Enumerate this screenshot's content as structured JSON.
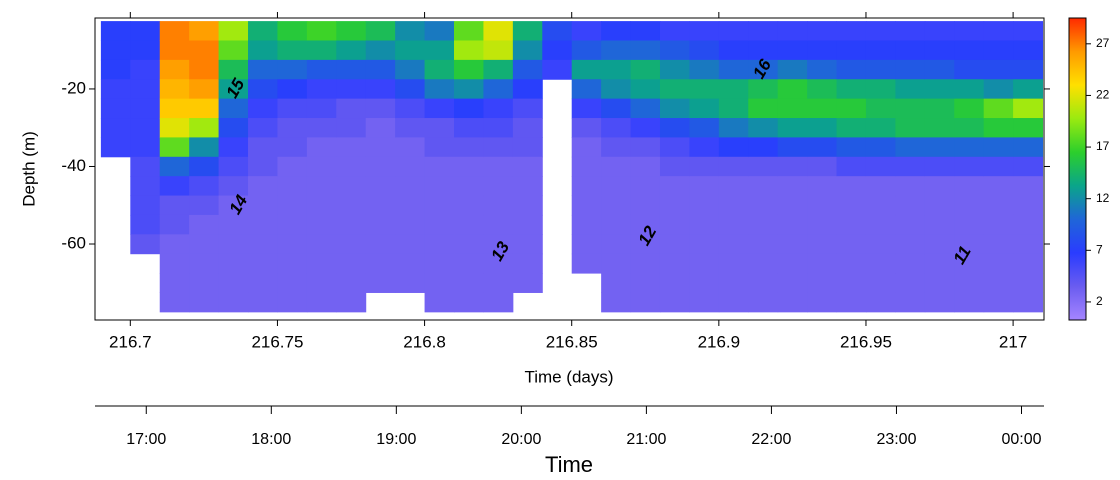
{
  "chart_data": {
    "type": "heatmap",
    "xlabel": "Time (days)",
    "ylabel": "Depth (m)",
    "xlim": [
      216.688,
      217.0105
    ],
    "xticks": [
      216.7,
      216.75,
      216.8,
      216.85,
      216.9,
      216.95,
      217
    ],
    "ylim": [
      -79.6,
      -1.7
    ],
    "yticks": [
      -60,
      -40,
      -20
    ],
    "clim": [
      0.25,
      29.5
    ],
    "cticks": [
      2,
      7,
      12,
      17,
      22,
      27
    ],
    "colormap": [
      "#a585ff",
      "#6a5cf0",
      "#2a3cff",
      "#1f66d8",
      "#0aa58a",
      "#2ccf2c",
      "#9aea10",
      "#ffe000",
      "#ff9a00",
      "#ff2a00"
    ],
    "x": [
      216.695,
      216.705,
      216.715,
      216.725,
      216.735,
      216.745,
      216.755,
      216.765,
      216.775,
      216.785,
      216.795,
      216.805,
      216.815,
      216.825,
      216.835,
      216.845,
      216.855,
      216.865,
      216.875,
      216.885,
      216.895,
      216.905,
      216.915,
      216.925,
      216.935,
      216.945,
      216.955,
      216.965,
      216.975,
      216.985,
      216.995,
      217.005
    ],
    "y": [
      -5,
      -10,
      -15,
      -20,
      -25,
      -30,
      -35,
      -40,
      -45,
      -50,
      -55,
      -60,
      -65,
      -70,
      -75
    ],
    "z": [
      [
        7,
        7,
        7,
        6,
        6,
        6,
        6,
        null,
        null,
        null,
        null,
        null,
        null,
        null,
        null
      ],
      [
        7,
        7,
        6,
        6,
        6,
        6,
        6,
        5,
        5,
        5,
        5,
        4,
        null,
        null,
        null
      ],
      [
        27,
        27,
        26,
        25,
        24,
        22,
        18,
        10,
        6,
        4,
        4,
        3,
        3,
        3,
        3
      ],
      [
        26,
        27,
        27,
        26,
        24,
        20,
        12,
        8,
        5,
        4,
        3,
        3,
        3,
        3,
        3
      ],
      [
        20,
        18,
        15,
        13,
        10,
        8,
        6,
        5,
        4,
        3,
        3,
        3,
        3,
        3,
        3
      ],
      [
        14,
        13,
        10,
        8,
        6,
        5,
        4,
        4,
        3,
        3,
        3,
        3,
        3,
        3,
        3
      ],
      [
        16,
        14,
        10,
        7,
        5,
        4,
        4,
        3,
        3,
        3,
        3,
        3,
        3,
        3,
        3
      ],
      [
        17,
        14,
        9,
        6,
        5,
        4,
        3,
        3,
        3,
        3,
        3,
        3,
        3,
        3,
        3
      ],
      [
        16,
        13,
        9,
        6,
        4,
        4,
        3,
        3,
        3,
        3,
        3,
        3,
        3,
        3,
        3
      ],
      [
        15,
        12,
        9,
        6,
        4,
        3,
        3,
        3,
        3,
        3,
        3,
        3,
        3,
        3,
        null
      ],
      [
        12,
        13,
        11,
        8,
        5,
        4,
        3,
        3,
        3,
        3,
        3,
        3,
        3,
        3,
        null
      ],
      [
        11,
        13,
        14,
        11,
        6,
        4,
        4,
        3,
        3,
        3,
        3,
        3,
        3,
        3,
        3
      ],
      [
        18,
        20,
        16,
        12,
        7,
        5,
        4,
        3,
        3,
        3,
        3,
        3,
        3,
        3,
        3
      ],
      [
        22,
        21,
        14,
        10,
        6,
        5,
        4,
        3,
        3,
        3,
        3,
        3,
        3,
        3,
        3
      ],
      [
        14,
        12,
        9,
        7,
        5,
        4,
        4,
        3,
        3,
        3,
        3,
        3,
        3,
        3,
        null
      ],
      [
        8,
        7,
        6,
        null,
        null,
        null,
        null,
        null,
        null,
        null,
        null,
        null,
        null,
        null,
        null
      ],
      [
        6,
        9,
        13,
        10,
        6,
        4,
        3,
        3,
        3,
        3,
        3,
        3,
        3,
        null,
        null
      ],
      [
        7,
        10,
        13,
        12,
        8,
        5,
        4,
        3,
        3,
        3,
        3,
        3,
        3,
        3,
        3
      ],
      [
        7,
        10,
        14,
        13,
        10,
        6,
        4,
        3,
        3,
        3,
        3,
        3,
        3,
        3,
        3
      ],
      [
        6,
        9,
        12,
        14,
        12,
        8,
        5,
        4,
        3,
        3,
        3,
        3,
        3,
        3,
        3
      ],
      [
        6,
        8,
        11,
        14,
        13,
        9,
        6,
        4,
        3,
        3,
        3,
        3,
        3,
        3,
        3
      ],
      [
        6,
        7,
        10,
        14,
        14,
        11,
        7,
        4,
        3,
        3,
        3,
        3,
        3,
        3,
        3
      ],
      [
        6,
        7,
        10,
        15,
        16,
        12,
        7,
        4,
        3,
        3,
        3,
        3,
        3,
        3,
        3
      ],
      [
        6,
        7,
        11,
        16,
        16,
        13,
        8,
        4,
        3,
        3,
        3,
        3,
        3,
        3,
        3
      ],
      [
        6,
        7,
        10,
        15,
        16,
        13,
        8,
        4,
        3,
        3,
        3,
        3,
        3,
        3,
        3
      ],
      [
        6,
        7,
        9,
        14,
        16,
        14,
        9,
        5,
        3,
        3,
        3,
        3,
        3,
        3,
        3
      ],
      [
        6,
        7,
        9,
        14,
        15,
        14,
        9,
        5,
        3,
        3,
        3,
        3,
        3,
        3,
        3
      ],
      [
        6,
        7,
        9,
        13,
        15,
        15,
        10,
        5,
        3,
        3,
        3,
        3,
        3,
        3,
        3
      ],
      [
        6,
        7,
        9,
        13,
        15,
        15,
        10,
        5,
        3,
        3,
        3,
        3,
        3,
        3,
        3
      ],
      [
        6,
        7,
        8,
        13,
        16,
        15,
        10,
        5,
        3,
        3,
        3,
        3,
        3,
        3,
        3
      ],
      [
        6,
        7,
        8,
        12,
        18,
        16,
        10,
        5,
        3,
        3,
        3,
        3,
        3,
        3,
        3
      ],
      [
        6,
        7,
        8,
        13,
        20,
        16,
        10,
        5,
        3,
        3,
        3,
        3,
        3,
        3,
        3
      ]
    ],
    "contour_labels": [
      {
        "value": 15,
        "x": 216.736,
        "y": -20
      },
      {
        "value": 14,
        "x": 216.737,
        "y": -50
      },
      {
        "value": 16,
        "x": 216.915,
        "y": -15
      },
      {
        "value": 13,
        "x": 216.826,
        "y": -62
      },
      {
        "value": 12,
        "x": 216.876,
        "y": -58
      },
      {
        "value": 11,
        "x": 216.983,
        "y": -63
      }
    ],
    "x2label": "Time",
    "x2lim": [
      16.59,
      24.18
    ],
    "x2ticks": [
      {
        "value": 17,
        "label": "17:00"
      },
      {
        "value": 18,
        "label": "18:00"
      },
      {
        "value": 19,
        "label": "19:00"
      },
      {
        "value": 20,
        "label": "20:00"
      },
      {
        "value": 21,
        "label": "21:00"
      },
      {
        "value": 22,
        "label": "22:00"
      },
      {
        "value": 23,
        "label": "23:00"
      },
      {
        "value": 24,
        "label": "00:00"
      }
    ]
  }
}
